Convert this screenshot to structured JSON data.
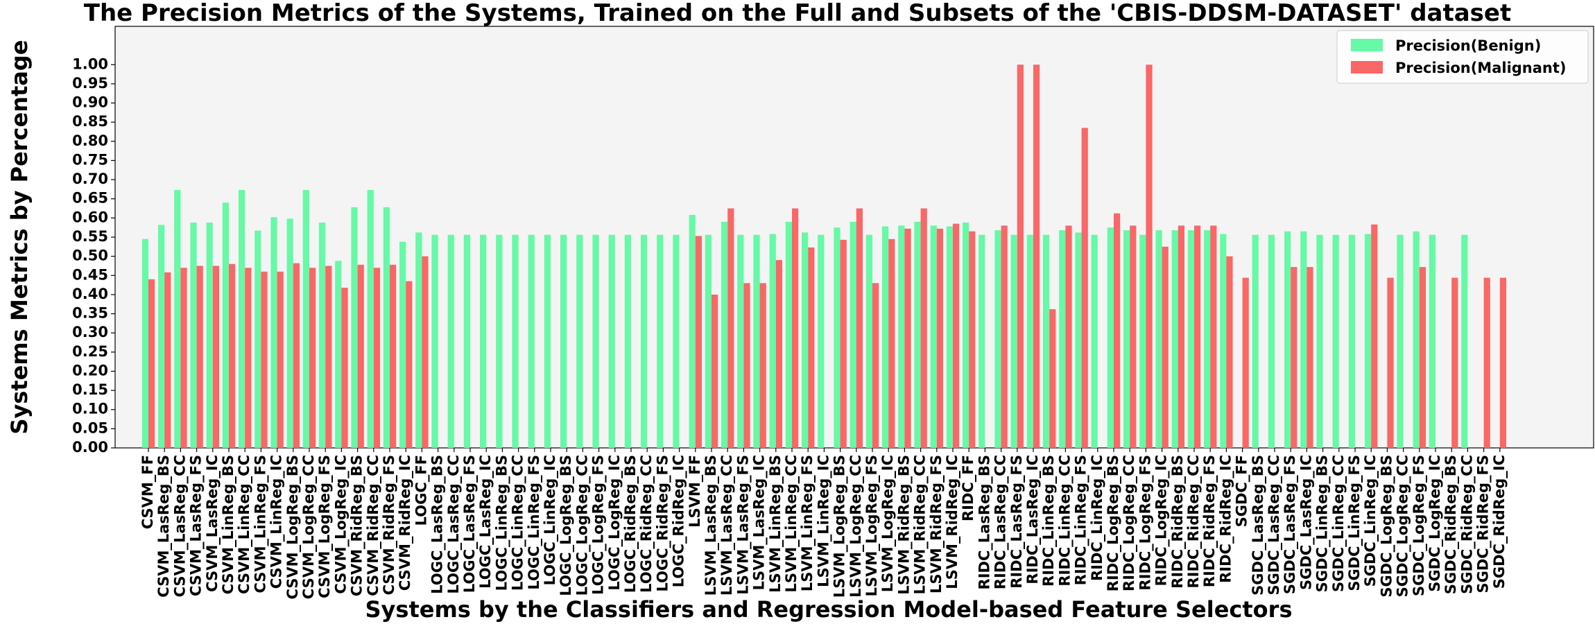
{
  "colors": {
    "benign": "#66f9a6",
    "malignant": "#f96766",
    "plot_bg": "#f4f4f4"
  },
  "chart_data": {
    "type": "bar",
    "title": "The Precision Metrics of the Systems, Trained on the Full and Subsets of the 'CBIS-DDSM-DATASET' dataset",
    "xlabel": "Systems by the Classifiers and Regression Model-based Feature Selectors",
    "ylabel": "Systems Metrics by Percentage",
    "ylim": [
      0,
      1.1
    ],
    "yticks": [
      "0.00",
      "0.05",
      "0.10",
      "0.15",
      "0.20",
      "0.25",
      "0.30",
      "0.35",
      "0.40",
      "0.45",
      "0.50",
      "0.55",
      "0.60",
      "0.65",
      "0.70",
      "0.75",
      "0.80",
      "0.85",
      "0.90",
      "0.95",
      "1.00"
    ],
    "legend_position": "top-right",
    "categories": [
      "CSVM_FF",
      "CSVM_LasReg_BS",
      "CSVM_LasReg_CC",
      "CSVM_LasReg_FS",
      "CSVM_LasReg_IC",
      "CSVM_LinReg_BS",
      "CSVM_LinReg_CC",
      "CSVM_LinReg_FS",
      "CSVM_LinReg_IC",
      "CSVM_LogReg_BS",
      "CSVM_LogReg_CC",
      "CSVM_LogReg_FS",
      "CSVM_LogReg_IC",
      "CSVM_RidReg_BS",
      "CSVM_RidReg_CC",
      "CSVM_RidReg_FS",
      "CSVM_RidReg_IC",
      "LOGC_FF",
      "LOGC_LasReg_BS",
      "LOGC_LasReg_CC",
      "LOGC_LasReg_FS",
      "LOGC_LasReg_IC",
      "LOGC_LinReg_BS",
      "LOGC_LinReg_CC",
      "LOGC_LinReg_FS",
      "LOGC_LinReg_IC",
      "LOGC_LogReg_BS",
      "LOGC_LogReg_CC",
      "LOGC_LogReg_FS",
      "LOGC_LogReg_IC",
      "LOGC_RidReg_BS",
      "LOGC_RidReg_CC",
      "LOGC_RidReg_FS",
      "LOGC_RidReg_IC",
      "LSVM_FF",
      "LSVM_LasReg_BS",
      "LSVM_LasReg_CC",
      "LSVM_LasReg_FS",
      "LSVM_LasReg_IC",
      "LSVM_LinReg_BS",
      "LSVM_LinReg_CC",
      "LSVM_LinReg_FS",
      "LSVM_LinReg_IC",
      "LSVM_LogReg_BS",
      "LSVM_LogReg_CC",
      "LSVM_LogReg_FS",
      "LSVM_LogReg_IC",
      "LSVM_RidReg_BS",
      "LSVM_RidReg_CC",
      "LSVM_RidReg_FS",
      "LSVM_RidReg_IC",
      "RIDC_FF",
      "RIDC_LasReg_BS",
      "RIDC_LasReg_CC",
      "RIDC_LasReg_FS",
      "RIDC_LasReg_IC",
      "RIDC_LinReg_BS",
      "RIDC_LinReg_CC",
      "RIDC_LinReg_FS",
      "RIDC_LinReg_IC",
      "RIDC_LogReg_BS",
      "RIDC_LogReg_CC",
      "RIDC_LogReg_FS",
      "RIDC_LogReg_IC",
      "RIDC_RidReg_BS",
      "RIDC_RidReg_CC",
      "RIDC_RidReg_FS",
      "RIDC_RidReg_IC",
      "SGDC_FF",
      "SGDC_LasReg_BS",
      "SGDC_LasReg_CC",
      "SGDC_LasReg_FS",
      "SGDC_LasReg_IC",
      "SGDC_LinReg_BS",
      "SGDC_LinReg_CC",
      "SGDC_LinReg_FS",
      "SGDC_LinReg_IC",
      "SGDC_LogReg_BS",
      "SGDC_LogReg_CC",
      "SGDC_LogReg_FS",
      "SGDC_LogReg_IC",
      "SGDC_RidReg_BS",
      "SGDC_RidReg_CC",
      "SGDC_RidReg_FS",
      "SGDC_RidReg_IC"
    ],
    "series": [
      {
        "name": "Precision(Benign)",
        "values": [
          0.545,
          0.582,
          0.673,
          0.588,
          0.588,
          0.64,
          0.673,
          0.567,
          0.602,
          0.598,
          0.673,
          0.588,
          0.488,
          0.628,
          0.673,
          0.628,
          0.538,
          0.562,
          0.556,
          0.556,
          0.556,
          0.556,
          0.556,
          0.556,
          0.556,
          0.556,
          0.556,
          0.556,
          0.556,
          0.556,
          0.556,
          0.556,
          0.556,
          0.556,
          0.608,
          0.556,
          0.59,
          0.556,
          0.556,
          0.558,
          0.59,
          0.562,
          0.556,
          0.575,
          0.59,
          0.556,
          0.578,
          0.58,
          0.59,
          0.58,
          0.578,
          0.588,
          0.556,
          0.568,
          0.556,
          0.556,
          0.556,
          0.568,
          0.562,
          0.556,
          0.575,
          0.568,
          0.556,
          0.568,
          0.568,
          0.568,
          0.568,
          0.558,
          0.0,
          0.556,
          0.556,
          0.565,
          0.565,
          0.556,
          0.556,
          0.556,
          0.558,
          0.0,
          0.556,
          0.565,
          0.556,
          0.0,
          0.556,
          0.0,
          0.0
        ]
      },
      {
        "name": "Precision(Malignant)",
        "values": [
          0.44,
          0.458,
          0.47,
          0.475,
          0.475,
          0.48,
          0.47,
          0.46,
          0.46,
          0.482,
          0.47,
          0.475,
          0.418,
          0.478,
          0.47,
          0.478,
          0.435,
          0.5,
          0.0,
          0.0,
          0.0,
          0.0,
          0.0,
          0.0,
          0.0,
          0.0,
          0.0,
          0.0,
          0.0,
          0.0,
          0.0,
          0.0,
          0.0,
          0.0,
          0.553,
          0.4,
          0.625,
          0.43,
          0.43,
          0.49,
          0.625,
          0.523,
          0.0,
          0.543,
          0.625,
          0.43,
          0.545,
          0.572,
          0.625,
          0.572,
          0.585,
          0.565,
          0.0,
          0.58,
          1.0,
          1.0,
          0.362,
          0.58,
          0.835,
          0.0,
          0.612,
          0.58,
          1.0,
          0.525,
          0.58,
          0.58,
          0.58,
          0.5,
          0.444,
          0.0,
          0.0,
          0.472,
          0.472,
          0.0,
          0.0,
          0.0,
          0.583,
          0.444,
          0.0,
          0.472,
          0.0,
          0.444,
          0.0,
          0.444,
          0.444
        ]
      }
    ]
  }
}
